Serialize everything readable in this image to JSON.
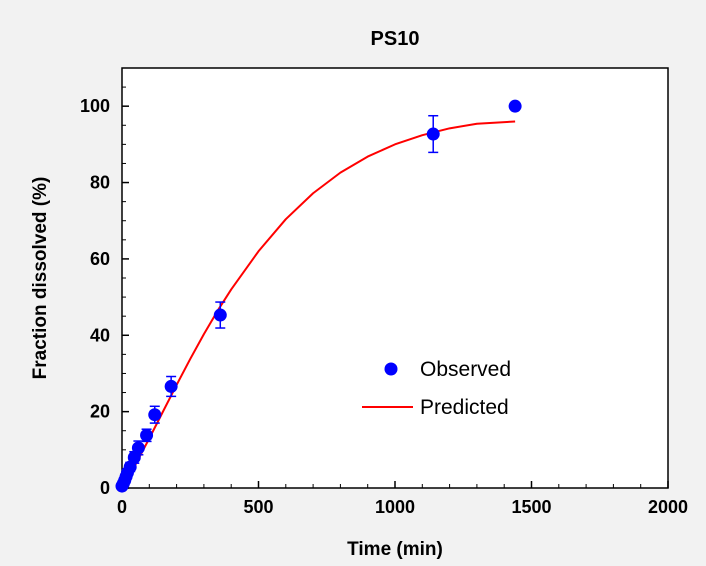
{
  "chart_data": {
    "type": "scatter",
    "title": "PS10",
    "xlabel": "Time (min)",
    "ylabel": "Fraction dissolved (%)",
    "xlim": [
      0,
      2000
    ],
    "ylim": [
      0,
      110
    ],
    "xticks": [
      "0",
      "500",
      "1000",
      "1500",
      "2000"
    ],
    "yticks": [
      "0",
      "20",
      "40",
      "60",
      "80",
      "100"
    ],
    "grid": false,
    "legend_position": "center-right",
    "colors": {
      "observed": "#0000ff",
      "predicted": "#ff0000",
      "error_bars": "#0000ff"
    },
    "series": [
      {
        "name": "Observed",
        "type": "scatter",
        "x": [
          0,
          5,
          10,
          15,
          20,
          30,
          45,
          60,
          90,
          120,
          180,
          360,
          1140,
          1440
        ],
        "y": [
          0.5,
          1.2,
          2.0,
          3.0,
          4.0,
          5.5,
          8.0,
          10.5,
          13.8,
          19.2,
          26.6,
          45.3,
          92.7,
          100
        ],
        "error": [
          0.3,
          0.5,
          0.6,
          0.8,
          1.0,
          1.2,
          1.5,
          1.8,
          1.6,
          2.2,
          2.6,
          3.4,
          4.8,
          0.0
        ]
      },
      {
        "name": "Predicted",
        "type": "line",
        "x": [
          0,
          25,
          50,
          75,
          100,
          150,
          200,
          250,
          300,
          350,
          400,
          500,
          600,
          700,
          800,
          900,
          1000,
          1100,
          1200,
          1300,
          1440
        ],
        "y": [
          0,
          3.0,
          6.2,
          9.6,
          13.0,
          20.0,
          27.0,
          33.8,
          40.3,
          46.4,
          52.0,
          62.0,
          70.4,
          77.2,
          82.6,
          86.8,
          90.0,
          92.4,
          94.2,
          95.4,
          96.0
        ]
      }
    ]
  }
}
